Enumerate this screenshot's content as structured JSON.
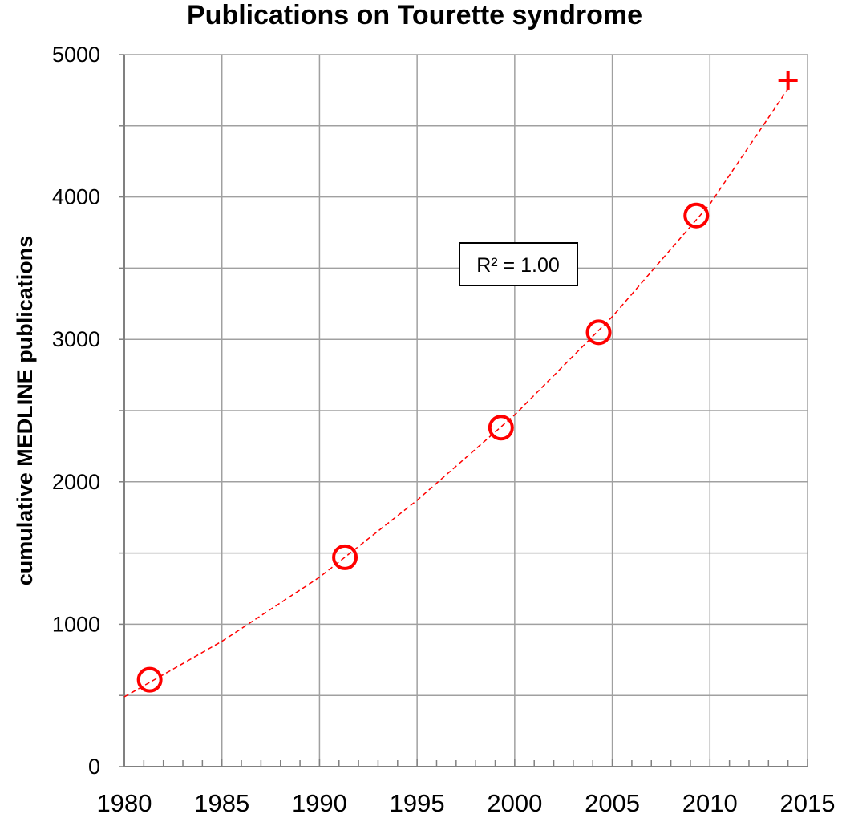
{
  "chart_data": {
    "type": "scatter",
    "title": "Publications on Tourette syndrome",
    "xlabel": "",
    "ylabel": "cumulative MEDLINE publications",
    "xlim": [
      1980,
      2015
    ],
    "ylim": [
      0,
      5000
    ],
    "x_ticks": [
      "1980",
      "1985",
      "1990",
      "1995",
      "2000",
      "2005",
      "2010",
      "2015"
    ],
    "y_ticks": [
      "0",
      "1000",
      "2000",
      "3000",
      "4000",
      "5000"
    ],
    "grid": true,
    "marker_color": "#ff0000",
    "series": [
      {
        "marker": "circle",
        "x": [
          1981.3,
          1991.3,
          1999.3,
          2004.3,
          2009.3
        ],
        "y": [
          610,
          1470,
          2380,
          3050,
          3870
        ]
      },
      {
        "marker": "plus",
        "x": [
          2014
        ],
        "y": [
          4820
        ]
      }
    ],
    "trendline": {
      "style": "dashed",
      "x": [
        1980,
        1985,
        1990,
        1995,
        2000,
        2005,
        2010,
        2014
      ],
      "y": [
        490,
        880,
        1330,
        1870,
        2470,
        3160,
        3950,
        4760
      ]
    },
    "annotations": [
      "R² = 1.00"
    ]
  }
}
